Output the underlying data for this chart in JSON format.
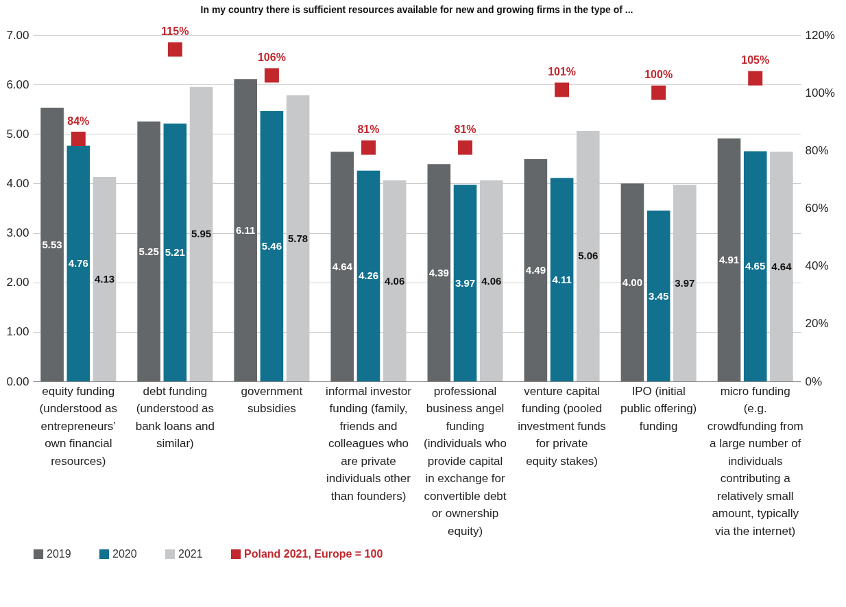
{
  "chart_data": {
    "type": "bar",
    "title": "In my country there is sufficient resources available for new and growing firms in the type of ...",
    "categories": [
      "equity funding (understood as entrepreneurs’ own financial resources)",
      "debt funding (understood as bank loans and similar)",
      "government subsidies",
      "informal investor funding (family, friends and colleagues who are private individuals other than founders)",
      "professional business angel funding (individuals who provide capital in exchange for convertible debt or ownership equity)",
      "venture capital funding (pooled investment funds for private equity stakes)",
      "IPO (initial public offering) funding",
      "micro funding (e.g. crowdfunding from a large number of individuals contributing a relatively small amount, typically via the internet)"
    ],
    "series": [
      {
        "name": "2019",
        "color": "#636769",
        "values": [
          5.53,
          5.25,
          6.11,
          4.64,
          4.39,
          4.49,
          4.0,
          4.91
        ],
        "value_labels": [
          "5.53",
          "5.25",
          "6.11",
          "4.64",
          "4.39",
          "4.49",
          "4.00",
          "4.91"
        ]
      },
      {
        "name": "2020",
        "color": "#11718f",
        "values": [
          4.76,
          5.21,
          5.46,
          4.26,
          3.97,
          4.11,
          3.45,
          4.65
        ],
        "value_labels": [
          "4.76",
          "5.21",
          "5.46",
          "4.26",
          "3.97",
          "4.11",
          "3.45",
          "4.65"
        ]
      },
      {
        "name": "2021",
        "color": "#c6c8ca",
        "values": [
          4.13,
          5.95,
          5.78,
          4.06,
          4.06,
          5.06,
          3.97,
          4.64
        ],
        "value_labels": [
          "4.13",
          "5.95",
          "5.78",
          "4.06",
          "4.06",
          "5.06",
          "3.97",
          "4.64"
        ]
      },
      {
        "name": "Poland 2021, Europe = 100",
        "type": "scatter",
        "axis": "y2",
        "color": "#c1272d",
        "values": [
          84,
          115,
          106,
          81,
          81,
          101,
          100,
          105
        ],
        "value_labels": [
          "84%",
          "115%",
          "106%",
          "81%",
          "81%",
          "101%",
          "100%",
          "105%"
        ]
      }
    ],
    "ylim": [
      0,
      7
    ],
    "yticks": [
      {
        "value": 0,
        "label": "0.00"
      },
      {
        "value": 1,
        "label": "1.00"
      },
      {
        "value": 2,
        "label": "2.00"
      },
      {
        "value": 3,
        "label": "3.00"
      },
      {
        "value": 4,
        "label": "4.00"
      },
      {
        "value": 5,
        "label": "5.00"
      },
      {
        "value": 6,
        "label": "6.00"
      },
      {
        "value": 7,
        "label": "7.00"
      }
    ],
    "y2lim": [
      0,
      120
    ],
    "y2ticks": [
      {
        "value": 0,
        "label": "0%"
      },
      {
        "value": 20,
        "label": "20%"
      },
      {
        "value": 40,
        "label": "40%"
      },
      {
        "value": 60,
        "label": "60%"
      },
      {
        "value": 80,
        "label": "80%"
      },
      {
        "value": 100,
        "label": "100%"
      },
      {
        "value": 120,
        "label": "120%"
      }
    ],
    "grid": "y",
    "legend": "bottom",
    "marker": "square"
  }
}
